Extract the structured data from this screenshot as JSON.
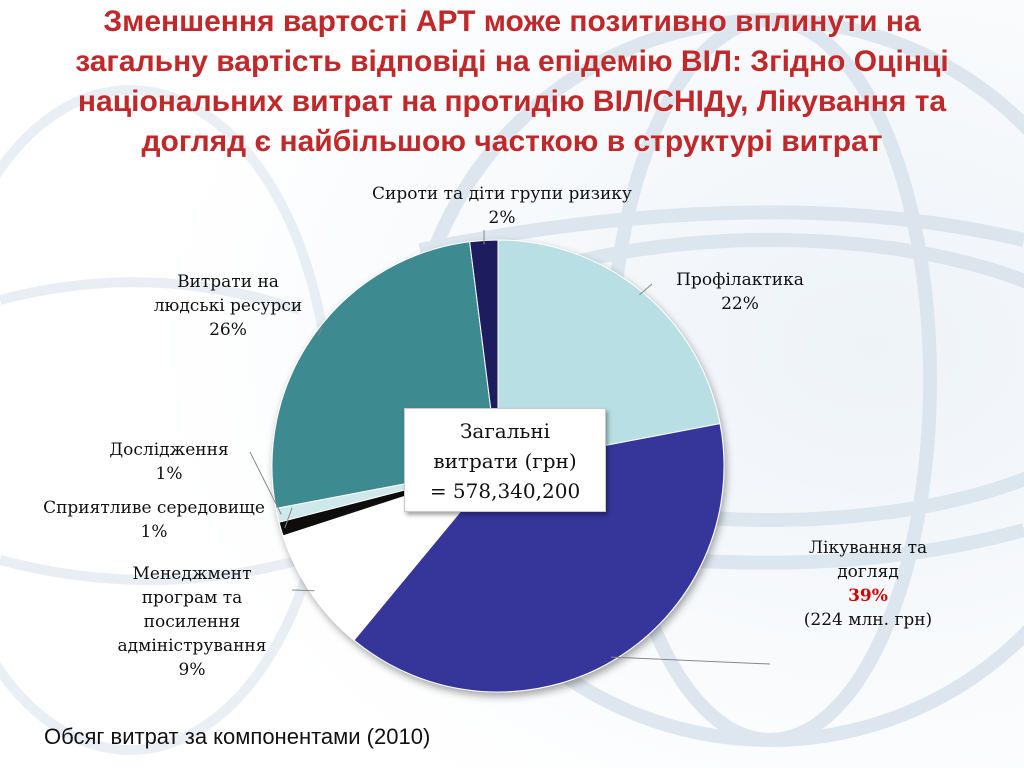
{
  "title": {
    "lines": [
      "Зменшення вартості АРТ може позитивно вплинути на",
      "загальну вартість відповіді на епідемію ВІЛ: Згідно Оцінці",
      "національних витрат на протидію ВІЛ/СНІДу, Лікування та",
      "догляд є найбільшою часткою в структурі витрат"
    ]
  },
  "total_box": {
    "line1": "Загальні",
    "line2": "витрати (грн)",
    "line3": "=  578,340,200"
  },
  "caption": "Обсяг витрат за компонентами (2010)",
  "chart_data": {
    "type": "pie",
    "start_angle_deg": 0,
    "direction": "clockwise",
    "slices": [
      {
        "name_lines": [
          "Профілактика"
        ],
        "value": 22,
        "pct_label": "22%",
        "color": "#b8dfe3"
      },
      {
        "name_lines": [
          "Лікування та",
          "догляд"
        ],
        "value": 39,
        "pct_label": "39%",
        "note": "(224 млн. грн)",
        "color": "#34349a"
      },
      {
        "name_lines": [
          "Менеджмент",
          "програм та",
          "посилення",
          "адміністрування"
        ],
        "value": 9,
        "pct_label": "9%",
        "color": "#ffffff"
      },
      {
        "name_lines": [
          "Сприятливе середовище"
        ],
        "value": 1,
        "pct_label": "1%",
        "color": "#111111"
      },
      {
        "name_lines": [
          "Дослідження"
        ],
        "value": 1,
        "pct_label": "1%",
        "color": "#cfe8ec"
      },
      {
        "name_lines": [
          "Витрати на",
          "людські ресурси"
        ],
        "value": 26,
        "pct_label": "26%",
        "color": "#3e8a90"
      },
      {
        "name_lines": [
          "Сироти та діти групи ризику"
        ],
        "value": 2,
        "pct_label": "2%",
        "color": "#1c1c5e"
      }
    ]
  }
}
